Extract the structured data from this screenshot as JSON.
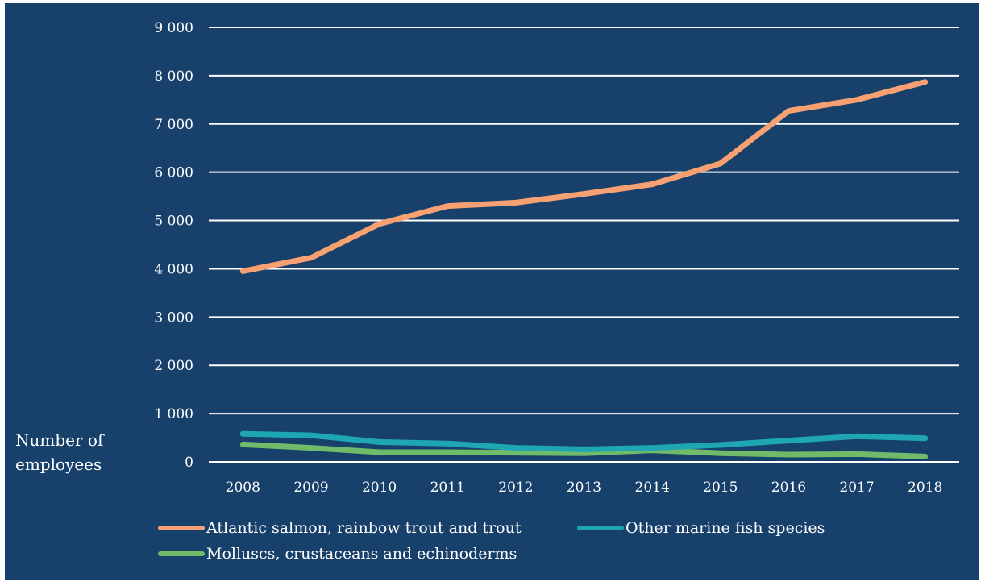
{
  "chart_data": {
    "type": "line",
    "title": "",
    "xlabel": "",
    "ylabel": "Number of employees",
    "ylim": [
      0,
      9000
    ],
    "yticks": [
      0,
      1000,
      2000,
      3000,
      4000,
      5000,
      6000,
      7000,
      8000,
      9000
    ],
    "ytick_labels": [
      "0",
      "1 000",
      "2 000",
      "3 000",
      "4 000",
      "5 000",
      "6 000",
      "7 000",
      "8 000",
      "9 000"
    ],
    "categories": [
      "2008",
      "2009",
      "2010",
      "2011",
      "2012",
      "2013",
      "2014",
      "2015",
      "2016",
      "2017",
      "2018"
    ],
    "grid": true,
    "legend_position": "bottom",
    "series": [
      {
        "name": "Atlantic salmon, rainbow trout and trout",
        "color": "#f7a072",
        "values": [
          3950,
          4230,
          4930,
          5300,
          5370,
          5550,
          5750,
          6180,
          7270,
          7500,
          7870
        ]
      },
      {
        "name": "Other marine fish species",
        "color": "#1fa6b3",
        "values": [
          580,
          550,
          410,
          380,
          290,
          260,
          290,
          350,
          440,
          530,
          490
        ]
      },
      {
        "name": "Molluscs, crustaceans and echinoderms",
        "color": "#6fbb6a",
        "values": [
          360,
          290,
          200,
          200,
          190,
          180,
          240,
          180,
          150,
          160,
          110
        ]
      }
    ]
  }
}
